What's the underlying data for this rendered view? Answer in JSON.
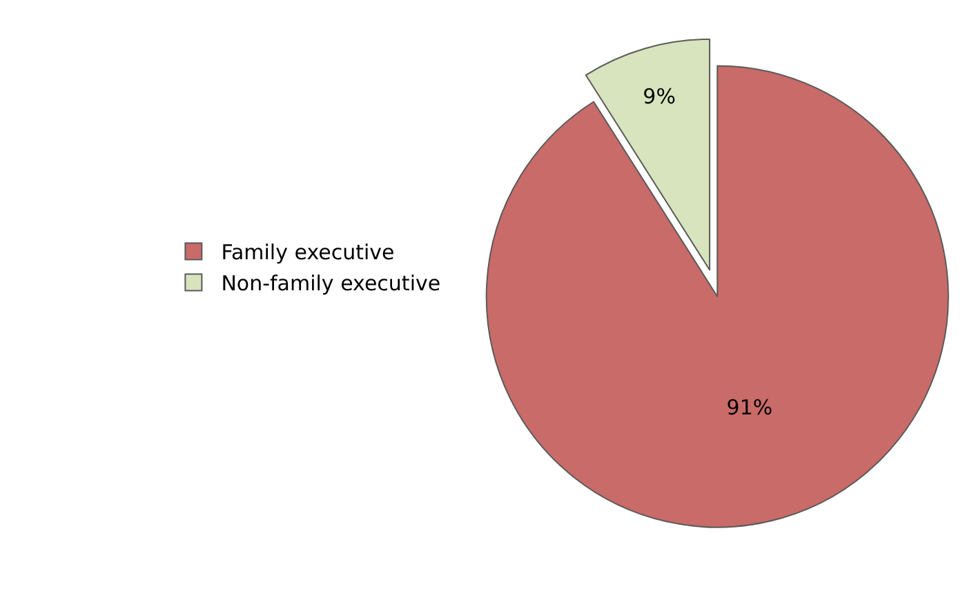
{
  "chart_data": {
    "type": "pie",
    "categories": [
      "Family executive",
      "Non-family executive"
    ],
    "values": [
      91,
      9
    ],
    "colors": [
      "#c96b68",
      "#d7e4bd"
    ],
    "value_labels": [
      "91%",
      "9%"
    ],
    "legend": "left"
  }
}
